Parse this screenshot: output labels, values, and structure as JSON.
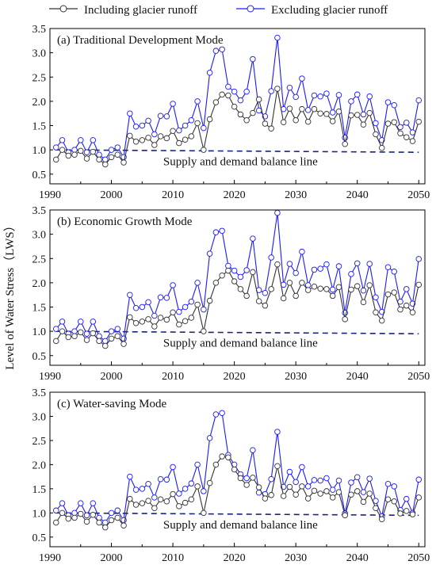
{
  "figure": {
    "ylabel": "Level of Water Stress（LWS）"
  },
  "legend": {
    "placement": "top-center",
    "items": [
      {
        "label": "Including glacier runoff",
        "color": "#000000",
        "marker": "open-circle"
      },
      {
        "label": "Excluding glacier runoff",
        "color": "#1a1aff",
        "marker": "open-circle"
      }
    ]
  },
  "colors": {
    "including": "#333333",
    "excluding": "#1a1aff",
    "balance_line": "#1a237e"
  },
  "chart_data": [
    {
      "type": "line",
      "title": "(a) Traditional Development Mode",
      "annotation": "Supply and demand balance line",
      "xlim": [
        1990,
        2051
      ],
      "ylim": [
        0.3,
        3.5
      ],
      "xticks": [
        1990,
        2000,
        2010,
        2020,
        2030,
        2040,
        2050
      ],
      "yticks": [
        0.5,
        1.0,
        1.5,
        2.0,
        2.5,
        3.0,
        3.5
      ],
      "x": [
        1991,
        1992,
        1993,
        1994,
        1995,
        1996,
        1997,
        1998,
        1999,
        2000,
        2001,
        2002,
        2003,
        2004,
        2005,
        2006,
        2007,
        2008,
        2009,
        2010,
        2011,
        2012,
        2013,
        2014,
        2015,
        2016,
        2017,
        2018,
        2019,
        2020,
        2021,
        2022,
        2023,
        2024,
        2025,
        2026,
        2027,
        2028,
        2029,
        2030,
        2031,
        2032,
        2033,
        2034,
        2035,
        2036,
        2037,
        2038,
        2039,
        2040,
        2041,
        2042,
        2043,
        2044,
        2045,
        2046,
        2047,
        2048,
        2049,
        2050
      ],
      "series": [
        {
          "name": "Including glacier runoff",
          "values": [
            0.8,
            1.0,
            0.88,
            0.9,
            0.98,
            0.82,
            0.96,
            0.8,
            0.7,
            0.85,
            0.9,
            0.74,
            1.29,
            1.17,
            1.2,
            1.25,
            1.1,
            1.28,
            1.24,
            1.39,
            1.14,
            1.21,
            1.28,
            1.55,
            1.0,
            1.63,
            1.98,
            2.14,
            2.12,
            1.89,
            1.73,
            1.61,
            1.76,
            2.04,
            1.54,
            1.44,
            2.26,
            1.57,
            1.85,
            1.61,
            1.84,
            1.58,
            1.84,
            1.75,
            1.74,
            1.59,
            1.79,
            1.12,
            1.71,
            1.72,
            1.52,
            1.76,
            1.32,
            1.04,
            1.54,
            1.57,
            1.34,
            1.26,
            1.18,
            1.58
          ]
        },
        {
          "name": "Excluding glacier runoff",
          "values": [
            1.05,
            1.2,
            0.95,
            1.0,
            1.2,
            0.95,
            1.2,
            0.9,
            0.8,
            1.0,
            1.05,
            0.85,
            1.75,
            1.48,
            1.5,
            1.6,
            1.32,
            1.7,
            1.69,
            1.95,
            1.4,
            1.5,
            1.61,
            2.0,
            1.45,
            2.59,
            3.04,
            3.07,
            2.3,
            2.2,
            2.02,
            2.2,
            2.87,
            1.81,
            1.69,
            2.21,
            3.31,
            1.84,
            2.28,
            2.09,
            2.47,
            1.82,
            2.12,
            2.1,
            2.16,
            1.77,
            2.13,
            1.25,
            2.0,
            2.14,
            1.73,
            2.1,
            1.55,
            1.2,
            1.98,
            1.92,
            1.47,
            1.56,
            1.36,
            2.02
          ]
        },
        {
          "name": "Supply and demand balance line",
          "style": "dashed",
          "x": [
            1991,
            2050
          ],
          "values": [
            1.0,
            0.95
          ]
        }
      ]
    },
    {
      "type": "line",
      "title": "(b) Economic Growth Mode",
      "annotation": "Supply and demand balance line",
      "xlim": [
        1990,
        2051
      ],
      "ylim": [
        0.3,
        3.5
      ],
      "xticks": [
        1990,
        2000,
        2010,
        2020,
        2030,
        2040,
        2050
      ],
      "yticks": [
        0.5,
        1.0,
        1.5,
        2.0,
        2.5,
        3.0,
        3.5
      ],
      "x": [
        1991,
        1992,
        1993,
        1994,
        1995,
        1996,
        1997,
        1998,
        1999,
        2000,
        2001,
        2002,
        2003,
        2004,
        2005,
        2006,
        2007,
        2008,
        2009,
        2010,
        2011,
        2012,
        2013,
        2014,
        2015,
        2016,
        2017,
        2018,
        2019,
        2020,
        2021,
        2022,
        2023,
        2024,
        2025,
        2026,
        2027,
        2028,
        2029,
        2030,
        2031,
        2032,
        2033,
        2034,
        2035,
        2036,
        2037,
        2038,
        2039,
        2040,
        2041,
        2042,
        2043,
        2044,
        2045,
        2046,
        2047,
        2048,
        2049,
        2050
      ],
      "series": [
        {
          "name": "Including glacier runoff",
          "values": [
            0.8,
            1.0,
            0.88,
            0.9,
            0.98,
            0.82,
            0.96,
            0.8,
            0.7,
            0.85,
            0.9,
            0.74,
            1.29,
            1.17,
            1.2,
            1.25,
            1.1,
            1.28,
            1.24,
            1.39,
            1.14,
            1.21,
            1.28,
            1.55,
            1.0,
            1.63,
            2.0,
            2.15,
            2.25,
            2.03,
            1.87,
            1.73,
            2.22,
            1.62,
            1.53,
            1.87,
            2.38,
            1.68,
            2.0,
            1.73,
            2.0,
            1.85,
            1.92,
            1.88,
            1.87,
            1.73,
            1.91,
            1.25,
            1.86,
            1.93,
            1.6,
            1.95,
            1.39,
            1.22,
            1.76,
            1.8,
            1.45,
            1.53,
            1.39,
            1.96
          ]
        },
        {
          "name": "Excluding glacier runoff",
          "values": [
            1.05,
            1.2,
            0.95,
            1.0,
            1.2,
            0.95,
            1.2,
            0.9,
            0.8,
            1.0,
            1.05,
            0.85,
            1.75,
            1.48,
            1.5,
            1.6,
            1.32,
            1.7,
            1.69,
            1.95,
            1.4,
            1.5,
            1.61,
            2.0,
            1.45,
            2.6,
            3.04,
            3.07,
            2.35,
            2.25,
            2.12,
            2.26,
            2.91,
            1.85,
            1.79,
            2.52,
            3.44,
            1.96,
            2.39,
            2.2,
            2.64,
            1.95,
            2.27,
            2.29,
            2.38,
            1.86,
            2.34,
            1.38,
            2.18,
            2.4,
            1.84,
            2.39,
            1.7,
            1.4,
            2.32,
            2.23,
            1.61,
            1.87,
            1.57,
            2.49
          ]
        },
        {
          "name": "Supply and demand balance line",
          "style": "dashed",
          "x": [
            1991,
            2050
          ],
          "values": [
            1.0,
            0.95
          ]
        }
      ]
    },
    {
      "type": "line",
      "title": "(c) Water-saving Mode",
      "annotation": "Supply and demand balance line",
      "xlim": [
        1990,
        2051
      ],
      "ylim": [
        0.3,
        3.5
      ],
      "xticks": [
        1990,
        2000,
        2010,
        2020,
        2030,
        2040,
        2050
      ],
      "yticks": [
        0.5,
        1.0,
        1.5,
        2.0,
        2.5,
        3.0,
        3.5
      ],
      "x": [
        1991,
        1992,
        1993,
        1994,
        1995,
        1996,
        1997,
        1998,
        1999,
        2000,
        2001,
        2002,
        2003,
        2004,
        2005,
        2006,
        2007,
        2008,
        2009,
        2010,
        2011,
        2012,
        2013,
        2014,
        2015,
        2016,
        2017,
        2018,
        2019,
        2020,
        2021,
        2022,
        2023,
        2024,
        2025,
        2026,
        2027,
        2028,
        2029,
        2030,
        2031,
        2032,
        2033,
        2034,
        2035,
        2036,
        2037,
        2038,
        2039,
        2040,
        2041,
        2042,
        2043,
        2044,
        2045,
        2046,
        2047,
        2048,
        2049,
        2050
      ],
      "series": [
        {
          "name": "Including glacier runoff",
          "values": [
            0.8,
            1.0,
            0.88,
            0.9,
            0.98,
            0.82,
            0.96,
            0.8,
            0.7,
            0.85,
            0.9,
            0.74,
            1.29,
            1.17,
            1.2,
            1.25,
            1.1,
            1.28,
            1.24,
            1.39,
            1.14,
            1.21,
            1.28,
            1.55,
            1.0,
            1.62,
            2.0,
            2.17,
            2.15,
            1.9,
            1.72,
            1.58,
            1.73,
            1.53,
            1.3,
            1.37,
            1.97,
            1.35,
            1.54,
            1.38,
            1.55,
            1.3,
            1.46,
            1.4,
            1.45,
            1.32,
            1.43,
            0.95,
            1.38,
            1.45,
            1.23,
            1.4,
            1.1,
            0.87,
            1.28,
            1.24,
            0.99,
            1.04,
            0.97,
            1.32
          ]
        },
        {
          "name": "Excluding glacier runoff",
          "values": [
            1.05,
            1.2,
            0.95,
            1.0,
            1.2,
            0.95,
            1.2,
            0.9,
            0.8,
            1.0,
            1.05,
            0.85,
            1.75,
            1.48,
            1.5,
            1.6,
            1.32,
            1.7,
            1.69,
            1.95,
            1.4,
            1.5,
            1.61,
            2.0,
            1.45,
            2.55,
            3.04,
            3.07,
            2.2,
            2.0,
            1.8,
            1.72,
            2.3,
            1.42,
            1.39,
            1.7,
            2.68,
            1.54,
            1.85,
            1.64,
            1.95,
            1.55,
            1.68,
            1.67,
            1.72,
            1.48,
            1.67,
            0.99,
            1.63,
            1.74,
            1.43,
            1.71,
            1.25,
            0.93,
            1.6,
            1.55,
            1.06,
            1.29,
            1.0,
            1.69
          ]
        },
        {
          "name": "Supply and demand balance line",
          "style": "dashed",
          "x": [
            1991,
            2050
          ],
          "values": [
            1.0,
            0.95
          ]
        }
      ]
    }
  ]
}
